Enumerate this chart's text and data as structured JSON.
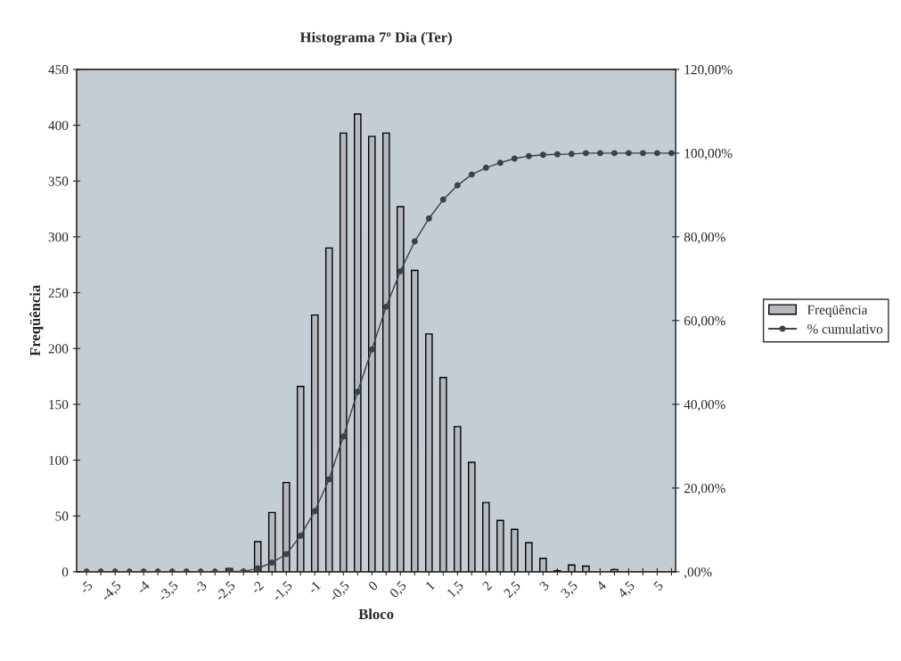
{
  "chart_data": {
    "type": "bar",
    "title": "Histograma 7º Dia (Ter)",
    "xlabel": "Bloco",
    "ylabel": "Freqüência",
    "categories": [
      "-5",
      null,
      "-4,5",
      null,
      "-4",
      null,
      "-3,5",
      null,
      "-3",
      null,
      "-2,5",
      null,
      "-2",
      null,
      "-1,5",
      null,
      "-1",
      null,
      "-0,5",
      null,
      "0",
      null,
      "0,5",
      null,
      "1",
      null,
      "1,5",
      null,
      "2",
      null,
      "2,5",
      null,
      "3",
      null,
      "3,5",
      null,
      "4",
      null,
      "4,5",
      null,
      "5",
      null
    ],
    "series": [
      {
        "name": "Freqüência",
        "color": "#b4b8bc",
        "values": [
          0,
          0,
          0,
          0,
          0,
          0,
          0,
          0,
          0,
          0,
          3,
          0,
          27,
          53,
          80,
          166,
          230,
          290,
          393,
          410,
          390,
          393,
          327,
          270,
          213,
          174,
          130,
          98,
          62,
          46,
          38,
          26,
          12,
          1,
          6,
          5,
          0,
          2,
          0,
          0,
          0,
          0
        ]
      },
      {
        "name": "% cumulativo",
        "type": "line",
        "axis": "y2",
        "color": "#3c4248",
        "marker": "circle",
        "values": [
          0,
          0,
          0,
          0,
          0,
          0,
          0,
          0,
          0,
          0,
          0.1,
          0.1,
          0.8,
          2.2,
          4.2,
          8.6,
          14.5,
          22.1,
          32.3,
          43.0,
          53.1,
          63.3,
          71.8,
          78.9,
          84.4,
          88.9,
          92.3,
          94.9,
          96.5,
          97.7,
          98.7,
          99.3,
          99.6,
          99.7,
          99.8,
          100,
          100,
          100,
          100,
          100,
          100,
          100
        ]
      }
    ],
    "ylim": [
      0,
      450
    ],
    "yticks": [
      0,
      50,
      100,
      150,
      200,
      250,
      300,
      350,
      400,
      450
    ],
    "y2lim": [
      0,
      120
    ],
    "y2ticks": [
      {
        "value": 0,
        "label": ",00%"
      },
      {
        "value": 20,
        "label": "20,00%"
      },
      {
        "value": 40,
        "label": "40,00%"
      },
      {
        "value": 60,
        "label": "60,00%"
      },
      {
        "value": 80,
        "label": "80,00%"
      },
      {
        "value": 100,
        "label": "100,00%"
      },
      {
        "value": 120,
        "label": "120,00%"
      }
    ],
    "grid": false,
    "legend": "right"
  }
}
